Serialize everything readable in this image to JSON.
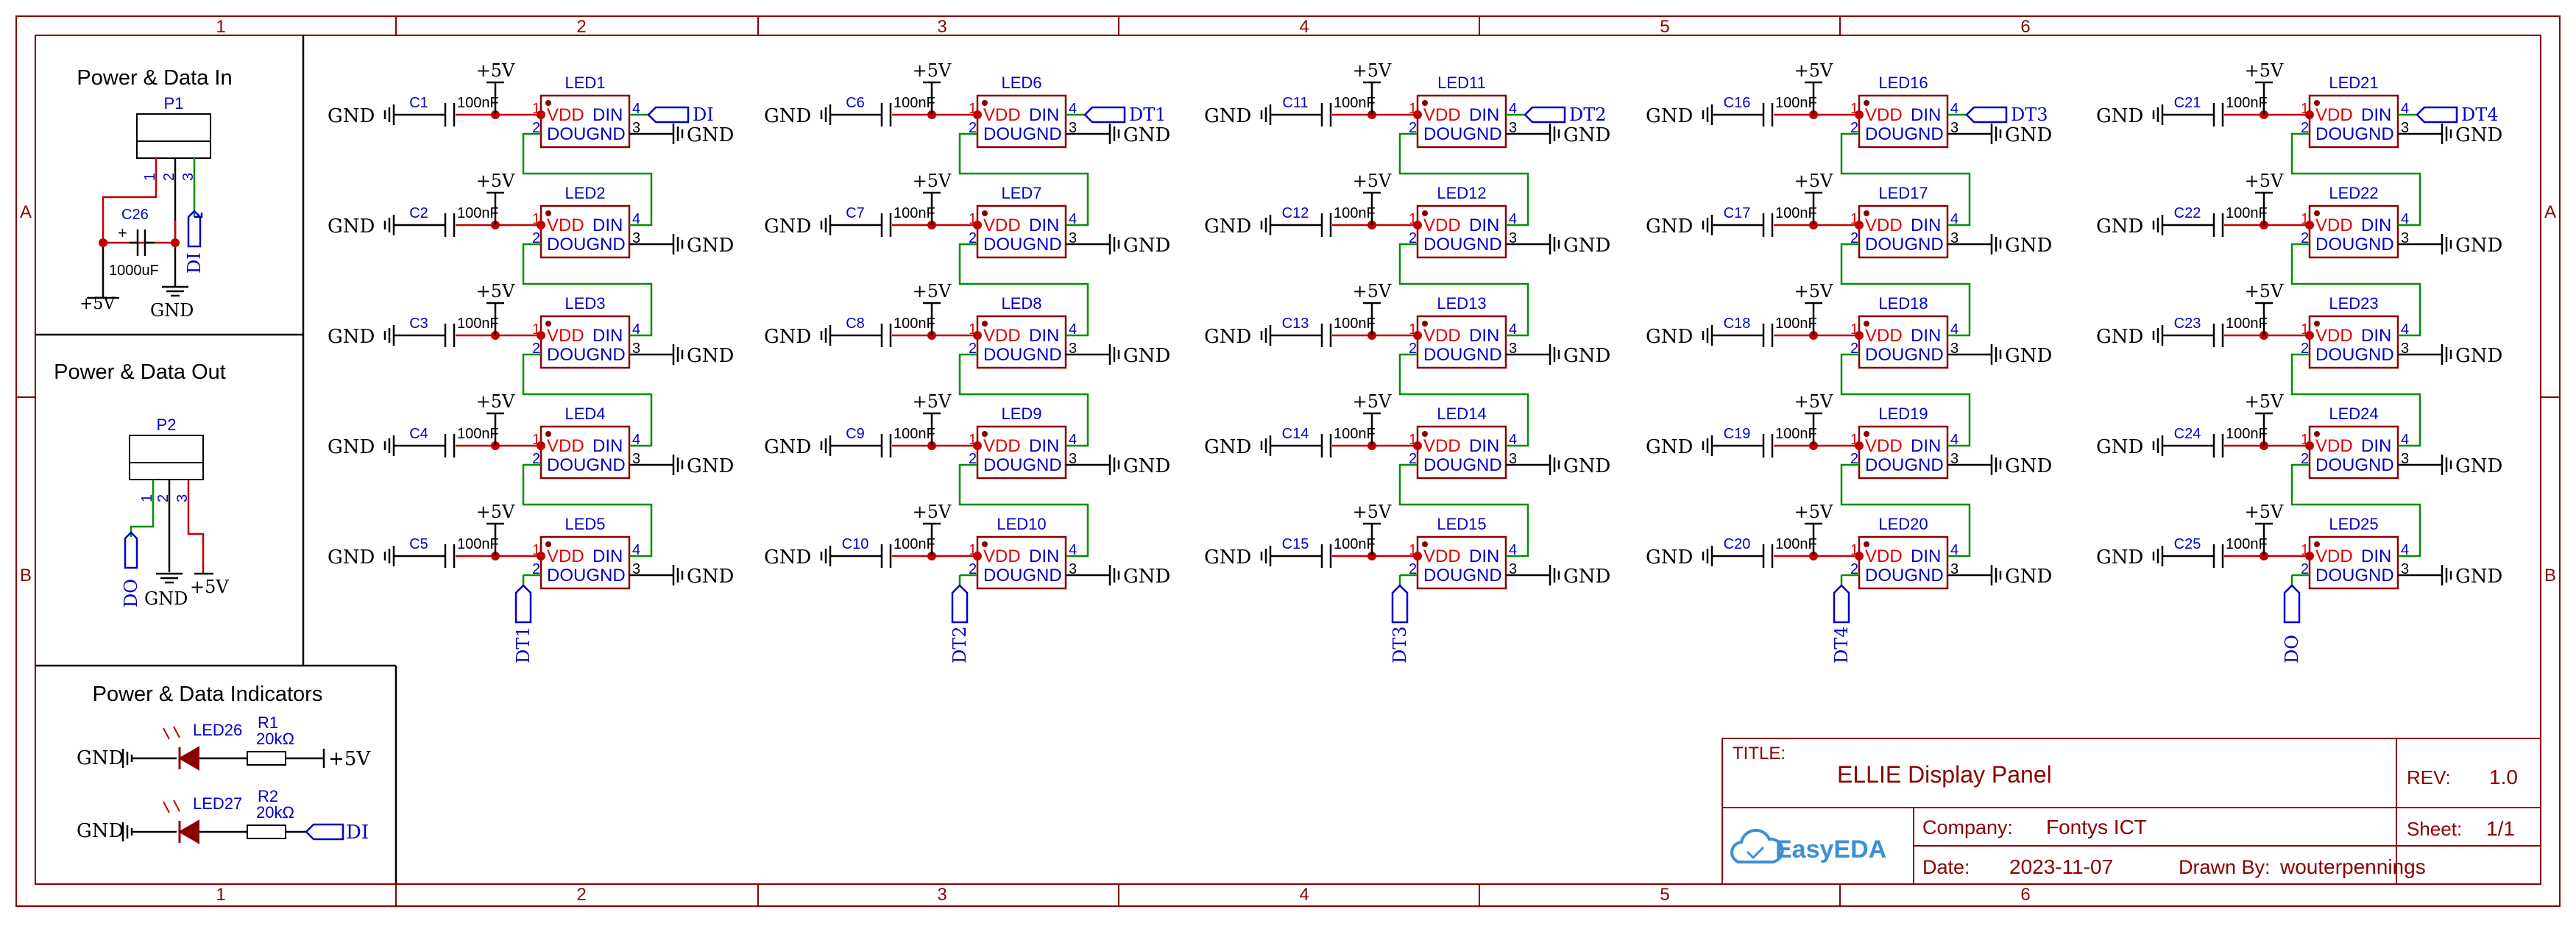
{
  "frame": {
    "column_numbers": [
      "1",
      "2",
      "3",
      "4",
      "5",
      "6"
    ],
    "row_letters": [
      "A",
      "B"
    ]
  },
  "panels": {
    "power_in": {
      "title": "Power & Data In",
      "connector": "P1",
      "pins": [
        "1",
        "2",
        "3"
      ],
      "capacitor": "C26",
      "capacitor_value": "1000uF",
      "plus_sign": "+",
      "vcc": "+5V",
      "gnd": "GND",
      "data": "DI"
    },
    "power_out": {
      "title": "Power & Data Out",
      "connector": "P2",
      "pins": [
        "1",
        "2",
        "3"
      ],
      "data": "DO",
      "gnd": "GND",
      "vcc": "+5V"
    },
    "indicators": {
      "title": "Power & Data Indicators",
      "led1": "LED26",
      "res1": "R1",
      "res1_value": "20kΩ",
      "net1_left": "GND",
      "net1_right": "+5V",
      "led2": "LED27",
      "res2": "R2",
      "res2_value": "20kΩ",
      "net2_left": "GND",
      "net2_right": "DI"
    }
  },
  "led_common": {
    "vdd": "VDD",
    "din": "DIN",
    "dout": "DOUGND",
    "pin1": "1",
    "pin2": "2",
    "pin3": "3",
    "pin4": "4",
    "cap_value": "100nF",
    "vcc": "+5V",
    "gnd": "GND"
  },
  "columns": [
    {
      "input_net": "DI",
      "output_net": "DT1",
      "leds": [
        "LED1",
        "LED2",
        "LED3",
        "LED4",
        "LED5"
      ],
      "caps": [
        "C1",
        "C2",
        "C3",
        "C4",
        "C5"
      ]
    },
    {
      "input_net": "DT1",
      "output_net": "DT2",
      "leds": [
        "LED6",
        "LED7",
        "LED8",
        "LED9",
        "LED10"
      ],
      "caps": [
        "C6",
        "C7",
        "C8",
        "C9",
        "C10"
      ]
    },
    {
      "input_net": "DT2",
      "output_net": "DT3",
      "leds": [
        "LED11",
        "LED12",
        "LED13",
        "LED14",
        "LED15"
      ],
      "caps": [
        "C11",
        "C12",
        "C13",
        "C14",
        "C15"
      ]
    },
    {
      "input_net": "DT3",
      "output_net": "DT4",
      "leds": [
        "LED16",
        "LED17",
        "LED18",
        "LED19",
        "LED20"
      ],
      "caps": [
        "C16",
        "C17",
        "C18",
        "C19",
        "C20"
      ]
    },
    {
      "input_net": "DT4",
      "output_net": "DO",
      "leds": [
        "LED21",
        "LED22",
        "LED23",
        "LED24",
        "LED25"
      ],
      "caps": [
        "C21",
        "C22",
        "C23",
        "C24",
        "C25"
      ]
    }
  ],
  "title_block": {
    "title_label": "TITLE:",
    "title": "ELLIE Display Panel",
    "rev_label": "REV:",
    "rev": "1.0",
    "logo_text": "EasyEDA",
    "company_label": "Company:",
    "company": "Fontys ICT",
    "sheet_label": "Sheet:",
    "sheet": "1/1",
    "date_label": "Date:",
    "date": "2023-11-07",
    "drawn_label": "Drawn By:",
    "drawn_by": "wouterpennings"
  },
  "colors": {
    "frame": "#8b0000",
    "wire": "#c00000",
    "data_wire": "#009000",
    "label_blue": "#0000c8",
    "black": "#000000"
  }
}
